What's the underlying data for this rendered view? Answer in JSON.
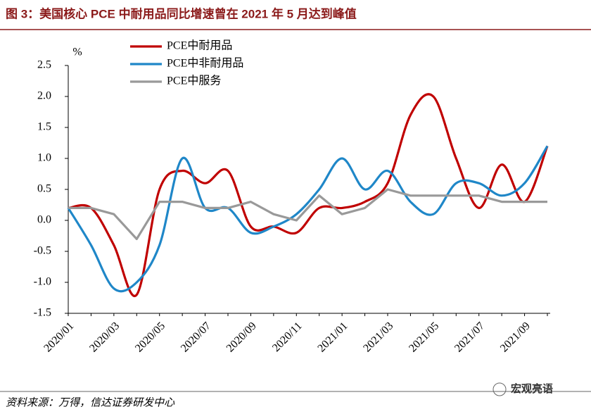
{
  "title": "图 3：美国核心 PCE 中耐用品同比增速曾在 2021 年 5 月达到峰值",
  "source": "资料来源：万得，信达证券研发中心",
  "watermark": "宏观亮语",
  "chart_data": {
    "type": "line",
    "y_unit": "%",
    "categories": [
      "2020/01",
      null,
      "2020/03",
      null,
      "2020/05",
      null,
      "2020/07",
      null,
      "2020/09",
      null,
      "2020/11",
      null,
      "2021/01",
      null,
      "2021/03",
      null,
      "2021/05",
      null,
      "2021/07",
      null,
      "2021/09",
      null
    ],
    "series": [
      {
        "name": "PCE中耐用品",
        "color": "#c00000",
        "smooth": true,
        "values": [
          0.2,
          0.2,
          -0.4,
          -1.2,
          0.5,
          0.8,
          0.6,
          0.8,
          -0.1,
          -0.1,
          -0.2,
          0.2,
          0.2,
          0.3,
          0.6,
          1.7,
          2.0,
          1.0,
          0.2,
          0.9,
          0.3,
          1.2
        ]
      },
      {
        "name": "PCE中非耐用品",
        "color": "#1f87c8",
        "smooth": true,
        "values": [
          0.2,
          -0.4,
          -1.1,
          -1.0,
          -0.4,
          1.0,
          0.2,
          0.2,
          -0.2,
          -0.1,
          0.1,
          0.5,
          1.0,
          0.5,
          0.8,
          0.3,
          0.1,
          0.6,
          0.6,
          0.4,
          0.6,
          1.2
        ]
      },
      {
        "name": "PCE中服务",
        "color": "#999999",
        "smooth": false,
        "values": [
          0.2,
          0.2,
          0.1,
          -0.3,
          0.3,
          0.3,
          0.2,
          0.2,
          0.3,
          0.1,
          0.0,
          0.4,
          0.1,
          0.2,
          0.5,
          0.4,
          0.4,
          0.4,
          0.4,
          0.3,
          0.3,
          0.3
        ]
      }
    ],
    "ylim": [
      -1.5,
      2.5
    ],
    "yticks": [
      -1.5,
      {
        "value": -1,
        "label": "-1.0"
      },
      -0.5,
      {
        "value": 0,
        "label": "0.0"
      },
      0.5,
      {
        "value": 1,
        "label": "1.0"
      },
      1.5,
      {
        "value": 2,
        "label": "2.0"
      },
      2.5
    ],
    "grid": false,
    "legend": "top-left"
  }
}
